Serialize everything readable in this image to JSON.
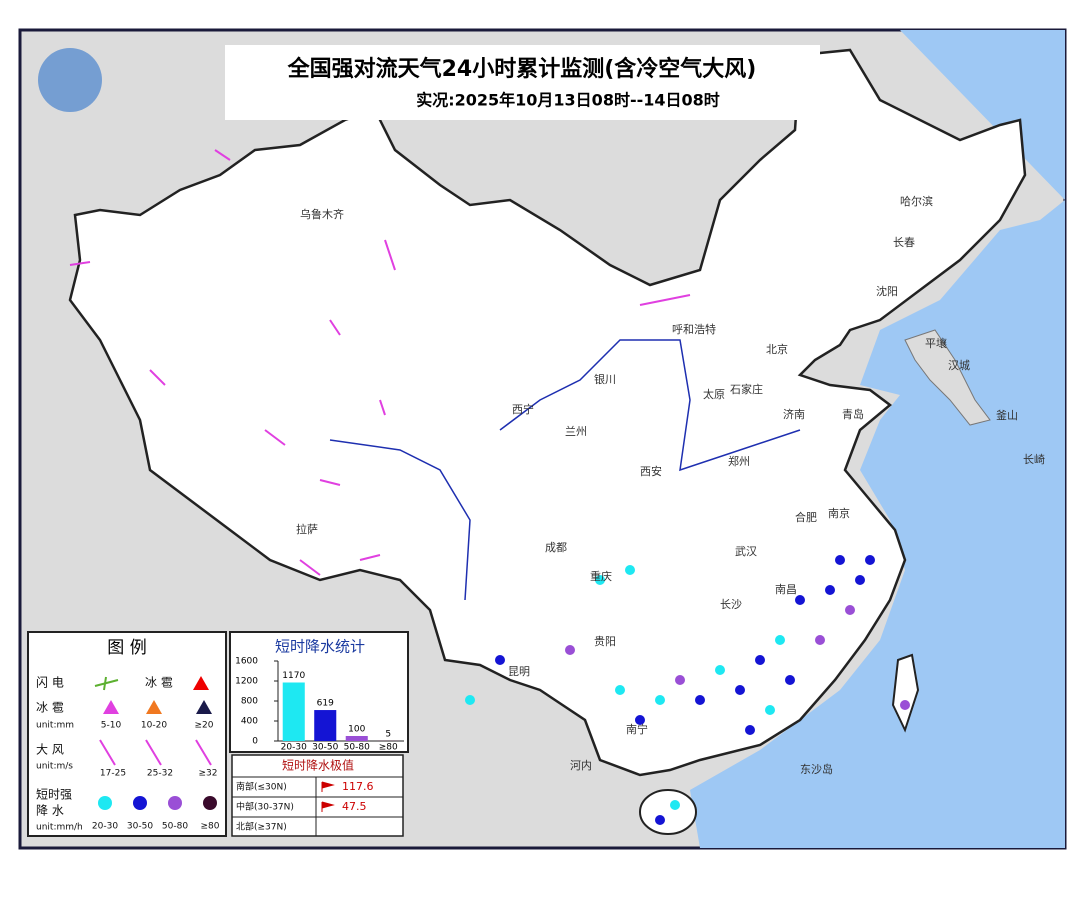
{
  "header": {
    "title": "全国强对流天气24小时累计监测(含冷空气大风)",
    "subtitle": "实况:2025年10月13日08时--14日08时"
  },
  "cities": [
    "乌鲁木齐",
    "哈尔滨",
    "长春",
    "沈阳",
    "呼和浩特",
    "北京",
    "太原",
    "石家庄",
    "银川",
    "西宁",
    "兰州",
    "济南",
    "青岛",
    "郑州",
    "西安",
    "合肥",
    "南京",
    "武汉",
    "成都",
    "重庆",
    "南昌",
    "长沙",
    "贵阳",
    "昆明",
    "南宁",
    "拉萨",
    "平壤",
    "汉城",
    "釜山",
    "长崎",
    "河内",
    "东沙岛"
  ],
  "legend": {
    "title": "图 例",
    "lightning": "闪 电",
    "hail_mark": "冰 雹",
    "hail": "冰 雹",
    "hail_unit": "unit:mm",
    "hail_levels": [
      "5-10",
      "10-20",
      "≥20"
    ],
    "wind": "大 风",
    "wind_unit": "unit:m/s",
    "wind_levels": [
      "17-25",
      "25-32",
      "≥32"
    ],
    "rain": "短时强",
    "rain2": "降 水",
    "rain_unit": "unit:mm/h",
    "rain_levels": [
      "20-30",
      "30-50",
      "50-80",
      "≥80"
    ]
  },
  "chart_data": {
    "type": "bar",
    "title": "短时降水统计",
    "categories": [
      "20-30",
      "30-50",
      "50-80",
      "≥80"
    ],
    "values": [
      1170,
      619,
      100,
      5
    ],
    "colors": [
      "#1ee8f2",
      "#1414d4",
      "#9a4fd6",
      "#3a0a2c"
    ],
    "ylim": [
      0,
      1600
    ],
    "yticks": [
      0,
      400,
      800,
      1200,
      1600
    ]
  },
  "extremes": {
    "title": "短时降水极值",
    "rows": [
      [
        "南部(≤30N)",
        117.6
      ],
      [
        "中部(30-37N)",
        47.5
      ],
      [
        "北部(≥37N)"
      ]
    ]
  }
}
